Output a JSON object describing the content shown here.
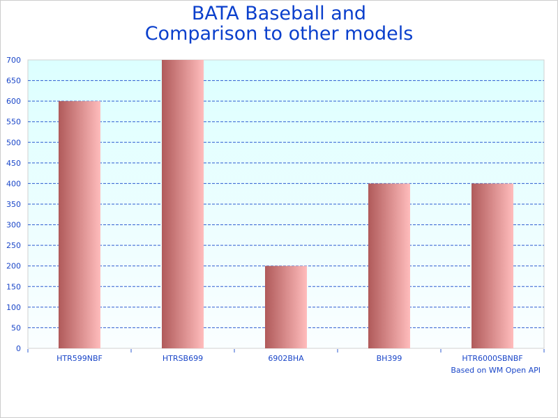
{
  "chart_data": {
    "type": "bar",
    "title": [
      "BATA Baseball and",
      "Comparison to other models"
    ],
    "categories": [
      "HTR599NBF",
      "HTRSB699",
      "6902BHA",
      "BH399",
      "HTR6000SBNBF"
    ],
    "values": [
      600,
      700,
      200,
      400,
      400
    ],
    "ylim": [
      0,
      700
    ],
    "ytick_step": 50,
    "grid": true,
    "xlabel": "",
    "ylabel": "",
    "footnote": "Based on WM Open API",
    "colors": {
      "bar_dark": "#b05a5a",
      "bar_light": "#ffbcbc",
      "grid": "#2d5bd0",
      "text": "#1a46c8",
      "title": "#0a3fcc",
      "plot_top": "#dcffff"
    }
  }
}
